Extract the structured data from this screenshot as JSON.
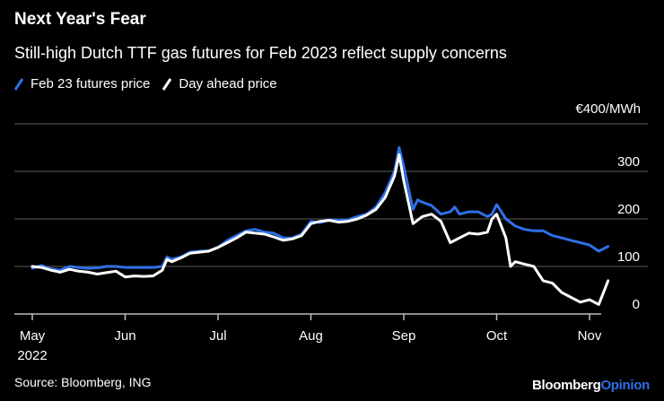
{
  "title": "Next Year's Fear",
  "subtitle": "Still-high Dutch TTF gas futures for Feb 2023 reflect supply concerns",
  "unit_label": "€400/MWh",
  "source": "Source: Bloomberg, ING",
  "brand": {
    "part1": "Bloomberg",
    "part2": "Opinion"
  },
  "colors": {
    "futures": "#2f6fe8",
    "dayahead": "#ffffff",
    "grid": "#5a5a5a"
  },
  "chart_data": {
    "type": "line",
    "title": "Next Year's Fear",
    "subtitle": "Still-high Dutch TTF gas futures for Feb 2023 reflect supply concerns",
    "ylabel": "€400/MWh",
    "ylim": [
      0,
      400
    ],
    "yticks": [
      "300",
      "200",
      "100",
      "0"
    ],
    "ytick_values": [
      300,
      200,
      100,
      0
    ],
    "xlim": [
      0,
      6.2
    ],
    "xticks": [
      {
        "x": 0,
        "label": "May",
        "label2": "2022"
      },
      {
        "x": 1,
        "label": "Jun",
        "label2": ""
      },
      {
        "x": 2,
        "label": "Jul",
        "label2": ""
      },
      {
        "x": 3,
        "label": "Aug",
        "label2": ""
      },
      {
        "x": 4,
        "label": "Sep",
        "label2": ""
      },
      {
        "x": 5,
        "label": "Oct",
        "label2": ""
      },
      {
        "x": 6,
        "label": "Nov",
        "label2": ""
      }
    ],
    "legend_position": "top-left",
    "grid": true,
    "series": [
      {
        "name": "Feb 23 futures price",
        "color": "#2f6fe8",
        "points": [
          [
            0,
            96
          ],
          [
            0.1,
            102
          ],
          [
            0.2,
            95
          ],
          [
            0.3,
            92
          ],
          [
            0.4,
            100
          ],
          [
            0.5,
            98
          ],
          [
            0.6,
            96
          ],
          [
            0.7,
            97
          ],
          [
            0.8,
            100
          ],
          [
            0.9,
            100
          ],
          [
            1,
            98
          ],
          [
            1.1,
            98
          ],
          [
            1.2,
            98
          ],
          [
            1.3,
            98
          ],
          [
            1.4,
            100
          ],
          [
            1.45,
            120
          ],
          [
            1.5,
            115
          ],
          [
            1.6,
            120
          ],
          [
            1.7,
            130
          ],
          [
            1.8,
            132
          ],
          [
            1.9,
            133
          ],
          [
            2,
            140
          ],
          [
            2.1,
            155
          ],
          [
            2.2,
            165
          ],
          [
            2.3,
            175
          ],
          [
            2.4,
            178
          ],
          [
            2.5,
            172
          ],
          [
            2.6,
            170
          ],
          [
            2.7,
            160
          ],
          [
            2.8,
            160
          ],
          [
            2.9,
            168
          ],
          [
            3,
            195
          ],
          [
            3.1,
            192
          ],
          [
            3.2,
            198
          ],
          [
            3.3,
            197
          ],
          [
            3.4,
            198
          ],
          [
            3.5,
            205
          ],
          [
            3.6,
            210
          ],
          [
            3.7,
            225
          ],
          [
            3.8,
            255
          ],
          [
            3.9,
            300
          ],
          [
            3.95,
            350
          ],
          [
            4,
            310
          ],
          [
            4.1,
            220
          ],
          [
            4.15,
            240
          ],
          [
            4.2,
            235
          ],
          [
            4.3,
            228
          ],
          [
            4.4,
            210
          ],
          [
            4.5,
            215
          ],
          [
            4.55,
            225
          ],
          [
            4.6,
            210
          ],
          [
            4.7,
            215
          ],
          [
            4.8,
            215
          ],
          [
            4.9,
            205
          ],
          [
            4.95,
            210
          ],
          [
            5,
            230
          ],
          [
            5.1,
            200
          ],
          [
            5.2,
            185
          ],
          [
            5.3,
            178
          ],
          [
            5.4,
            175
          ],
          [
            5.5,
            175
          ],
          [
            5.6,
            165
          ],
          [
            5.7,
            160
          ],
          [
            5.8,
            155
          ],
          [
            5.9,
            150
          ],
          [
            6,
            145
          ],
          [
            6.1,
            132
          ],
          [
            6.2,
            142
          ]
        ]
      },
      {
        "name": "Day ahead price",
        "color": "#ffffff",
        "points": [
          [
            0,
            100
          ],
          [
            0.1,
            98
          ],
          [
            0.2,
            92
          ],
          [
            0.3,
            88
          ],
          [
            0.4,
            94
          ],
          [
            0.5,
            90
          ],
          [
            0.6,
            88
          ],
          [
            0.7,
            84
          ],
          [
            0.8,
            87
          ],
          [
            0.9,
            90
          ],
          [
            1,
            78
          ],
          [
            1.1,
            80
          ],
          [
            1.2,
            79
          ],
          [
            1.3,
            80
          ],
          [
            1.4,
            92
          ],
          [
            1.45,
            115
          ],
          [
            1.5,
            110
          ],
          [
            1.6,
            118
          ],
          [
            1.7,
            128
          ],
          [
            1.8,
            130
          ],
          [
            1.9,
            132
          ],
          [
            2,
            140
          ],
          [
            2.1,
            150
          ],
          [
            2.2,
            160
          ],
          [
            2.3,
            172
          ],
          [
            2.4,
            170
          ],
          [
            2.5,
            168
          ],
          [
            2.6,
            162
          ],
          [
            2.7,
            155
          ],
          [
            2.8,
            158
          ],
          [
            2.9,
            165
          ],
          [
            3,
            190
          ],
          [
            3.1,
            195
          ],
          [
            3.2,
            197
          ],
          [
            3.3,
            193
          ],
          [
            3.4,
            195
          ],
          [
            3.5,
            200
          ],
          [
            3.6,
            208
          ],
          [
            3.7,
            220
          ],
          [
            3.8,
            245
          ],
          [
            3.9,
            290
          ],
          [
            3.95,
            335
          ],
          [
            4,
            280
          ],
          [
            4.1,
            190
          ],
          [
            4.2,
            205
          ],
          [
            4.3,
            210
          ],
          [
            4.4,
            195
          ],
          [
            4.5,
            150
          ],
          [
            4.6,
            160
          ],
          [
            4.7,
            170
          ],
          [
            4.8,
            168
          ],
          [
            4.9,
            172
          ],
          [
            4.95,
            200
          ],
          [
            5,
            210
          ],
          [
            5.1,
            160
          ],
          [
            5.15,
            100
          ],
          [
            5.2,
            110
          ],
          [
            5.3,
            105
          ],
          [
            5.4,
            100
          ],
          [
            5.5,
            70
          ],
          [
            5.6,
            65
          ],
          [
            5.7,
            45
          ],
          [
            5.8,
            35
          ],
          [
            5.9,
            25
          ],
          [
            6,
            30
          ],
          [
            6.1,
            20
          ],
          [
            6.2,
            70
          ]
        ]
      }
    ]
  }
}
